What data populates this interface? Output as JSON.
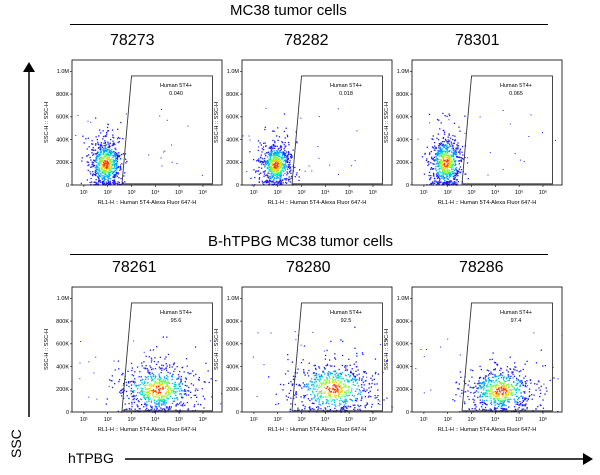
{
  "groups": [
    {
      "title": "MC38 tumor cells"
    },
    {
      "title": "B-hTPBG MC38 tumor cells"
    }
  ],
  "axes": {
    "y_label": "SSC",
    "x_label": "hTPBG"
  },
  "colors": {
    "axis": "#000000",
    "gate": "#333333",
    "density": [
      "#1a1aff",
      "#00a0ff",
      "#00e0c0",
      "#7cff3a",
      "#ffd000",
      "#ff3a00"
    ]
  },
  "chart_data": [
    {
      "type": "scatter",
      "sample": "78273",
      "gate_label": "Human 5T4+",
      "gate_value": "0.040",
      "ylabel": "SSC-H :: SSC-H",
      "xlabel": "RL1-H :: Human 5T4-Alexa Fluor 647-H",
      "y_ticks": [
        "0",
        "200K",
        "400K",
        "600K",
        "800K",
        "1.0M"
      ],
      "x_ticks": [
        "10¹",
        "10²",
        "10³",
        "10⁴",
        "10⁵",
        "10⁶"
      ],
      "population": {
        "center_log_x": 1.9,
        "center_y_k": 190,
        "spread_log_x": 0.35,
        "spread_y_k": 110
      }
    },
    {
      "type": "scatter",
      "sample": "78282",
      "gate_label": "Human 5T4+",
      "gate_value": "0.018",
      "ylabel": "SSC-H :: SSC-H",
      "xlabel": "RL1-H :: Human 5T4-Alexa Fluor 647-H",
      "y_ticks": [
        "0",
        "200K",
        "400K",
        "600K",
        "800K",
        "1.0M"
      ],
      "x_ticks": [
        "10¹",
        "10²",
        "10³",
        "10⁴",
        "10⁵",
        "10⁶"
      ],
      "population": {
        "center_log_x": 1.9,
        "center_y_k": 180,
        "spread_log_x": 0.35,
        "spread_y_k": 100
      }
    },
    {
      "type": "scatter",
      "sample": "78301",
      "gate_label": "Human 5T4+",
      "gate_value": "0.065",
      "ylabel": "SSC-H :: SSC-H",
      "xlabel": "RL1-H :: Human 5T4-Alexa Fluor 647-H",
      "y_ticks": [
        "0",
        "200K",
        "400K",
        "600K",
        "800K",
        "1.0M"
      ],
      "x_ticks": [
        "10¹",
        "10²",
        "10³",
        "10⁴",
        "10⁵",
        "10⁶"
      ],
      "population": {
        "center_log_x": 1.9,
        "center_y_k": 200,
        "spread_log_x": 0.35,
        "spread_y_k": 120
      }
    },
    {
      "type": "scatter",
      "sample": "78261",
      "gate_label": "Human 5T4+",
      "gate_value": "95.6",
      "ylabel": "SSC-H :: SSC-H",
      "xlabel": "RL1-H :: Human 5T4-Alexa Fluor 647-H",
      "y_ticks": [
        "0",
        "200K",
        "400K",
        "600K",
        "800K",
        "1.0M"
      ],
      "x_ticks": [
        "10¹",
        "10²",
        "10³",
        "10⁴",
        "10⁵",
        "10⁶"
      ],
      "population": {
        "center_log_x": 4.1,
        "center_y_k": 200,
        "spread_log_x": 0.8,
        "spread_y_k": 110
      }
    },
    {
      "type": "scatter",
      "sample": "78280",
      "gate_label": "Human 5T4+",
      "gate_value": "92.5",
      "ylabel": "SSC-H :: SSC-H",
      "xlabel": "RL1-H :: Human 5T4-Alexa Fluor 647-H",
      "y_ticks": [
        "0",
        "200K",
        "400K",
        "600K",
        "800K",
        "1.0M"
      ],
      "x_ticks": [
        "10¹",
        "10²",
        "10³",
        "10⁴",
        "10⁵",
        "10⁶"
      ],
      "population": {
        "center_log_x": 4.3,
        "center_y_k": 210,
        "spread_log_x": 0.9,
        "spread_y_k": 120
      }
    },
    {
      "type": "scatter",
      "sample": "78286",
      "gate_label": "Human 5T4+",
      "gate_value": "97.4",
      "ylabel": "SSC-H :: SSC-H",
      "xlabel": "RL1-H :: Human 5T4-Alexa Fluor 647-H",
      "y_ticks": [
        "0",
        "200K",
        "400K",
        "600K",
        "800K",
        "1.0M"
      ],
      "x_ticks": [
        "10¹",
        "10²",
        "10³",
        "10⁴",
        "10⁵",
        "10⁶"
      ],
      "population": {
        "center_log_x": 4.2,
        "center_y_k": 190,
        "spread_log_x": 0.75,
        "spread_y_k": 105
      }
    }
  ]
}
